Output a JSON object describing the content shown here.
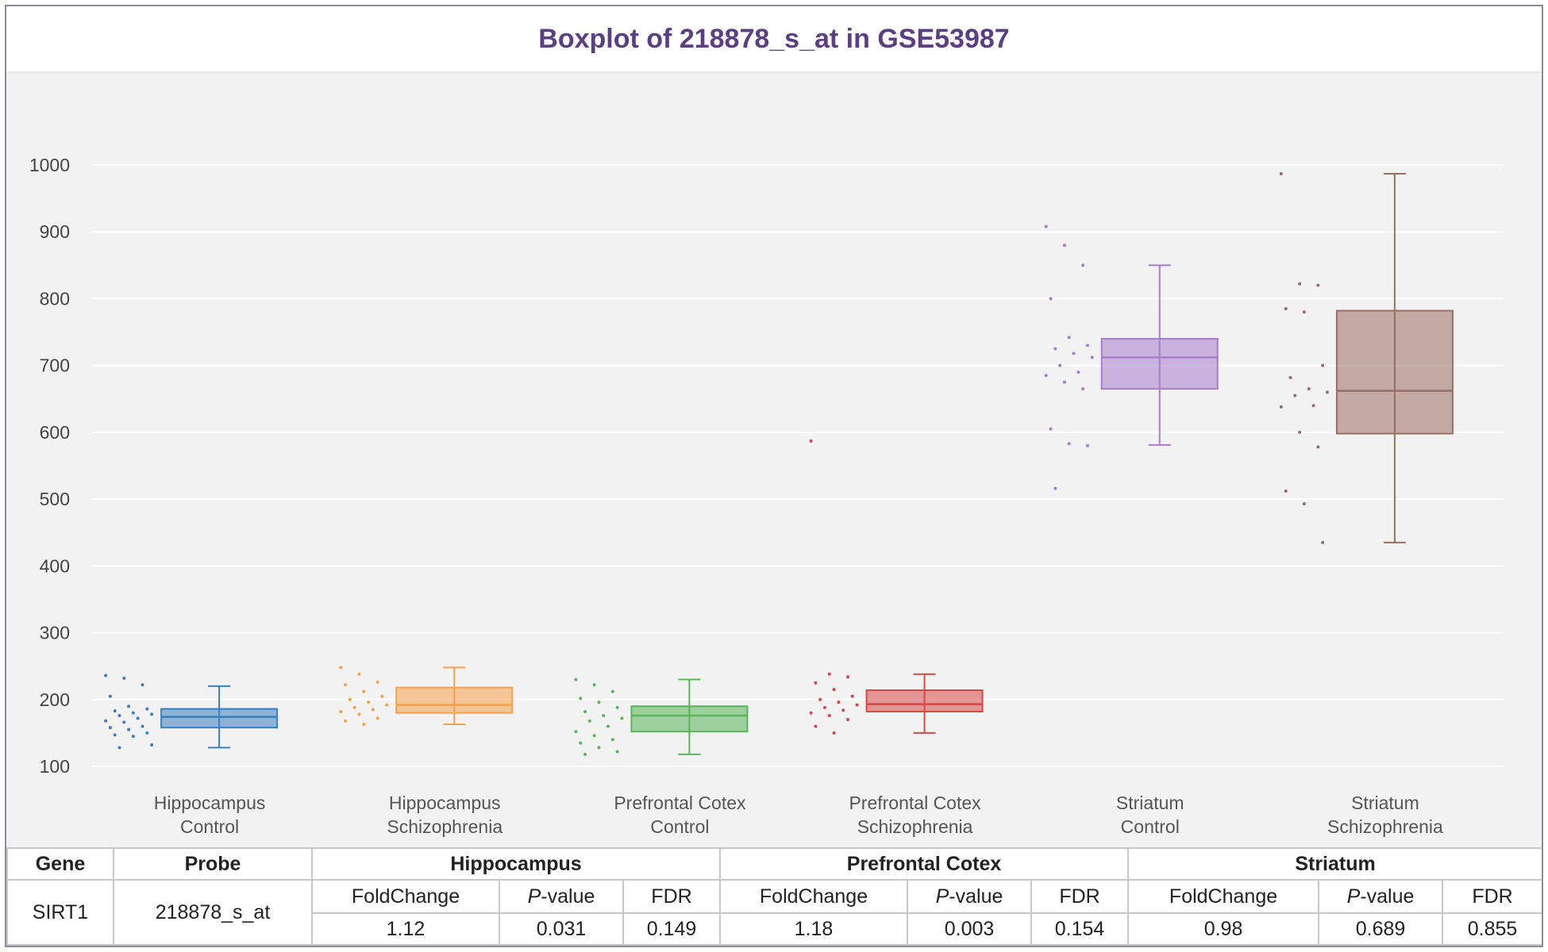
{
  "chart_data": {
    "type": "box",
    "title": "Boxplot of 218878_s_at in GSE53987",
    "xlabel": "",
    "ylabel": "",
    "ylim": [
      100,
      1000
    ],
    "yticks": [
      100,
      200,
      300,
      400,
      500,
      600,
      700,
      800,
      900,
      1000
    ],
    "grid": true,
    "groups": [
      {
        "label_line1": "Hippocampus",
        "label_line2": "Control",
        "color": "#3a7fc1",
        "min": 128,
        "q1": 158,
        "median": 174,
        "q3": 186,
        "max": 220,
        "points": [
          236,
          232,
          222,
          205,
          190,
          186,
          183,
          180,
          178,
          176,
          172,
          168,
          166,
          160,
          158,
          155,
          150,
          147,
          145,
          132,
          128
        ]
      },
      {
        "label_line1": "Hippocampus",
        "label_line2": "Schizophrenia",
        "color": "#f5a04a",
        "min": 163,
        "q1": 180,
        "median": 192,
        "q3": 218,
        "max": 248,
        "points": [
          248,
          238,
          226,
          222,
          212,
          205,
          200,
          196,
          192,
          188,
          185,
          182,
          178,
          172,
          168,
          163
        ]
      },
      {
        "label_line1": "Prefrontal Cotex",
        "label_line2": "Control",
        "color": "#5ab55a",
        "min": 118,
        "q1": 152,
        "median": 176,
        "q3": 190,
        "max": 230,
        "points": [
          230,
          222,
          212,
          202,
          196,
          188,
          182,
          176,
          172,
          168,
          160,
          152,
          146,
          140,
          135,
          128,
          122,
          118
        ]
      },
      {
        "label_line1": "Prefrontal Cotex",
        "label_line2": "Schizophrenia",
        "color": "#d64848",
        "min": 150,
        "q1": 182,
        "median": 193,
        "q3": 214,
        "max": 238,
        "points": [
          587,
          238,
          234,
          225,
          215,
          205,
          200,
          196,
          192,
          188,
          184,
          180,
          176,
          170,
          160,
          150
        ]
      },
      {
        "label_line1": "Striatum",
        "label_line2": "Control",
        "color": "#a77dcc",
        "min": 581,
        "q1": 665,
        "median": 712,
        "q3": 740,
        "max": 850,
        "points": [
          908,
          880,
          850,
          800,
          742,
          730,
          725,
          718,
          712,
          700,
          690,
          685,
          675,
          665,
          605,
          583,
          580,
          516
        ]
      },
      {
        "label_line1": "Striatum",
        "label_line2": "Schizophrenia",
        "color": "#9a6e65",
        "min": 435,
        "q1": 598,
        "median": 662,
        "q3": 782,
        "max": 987,
        "points": [
          987,
          822,
          820,
          785,
          780,
          700,
          682,
          665,
          660,
          655,
          640,
          638,
          600,
          578,
          512,
          493,
          435
        ]
      }
    ]
  },
  "table": {
    "headers": {
      "gene": "Gene",
      "probe": "Probe",
      "region1": "Hippocampus",
      "region2": "Prefrontal Cotex",
      "region3": "Striatum"
    },
    "sub": {
      "foldchange": "FoldChange",
      "p_italic": "P",
      "p_rest": "-value",
      "fdr": "FDR"
    },
    "row": {
      "gene": "SIRT1",
      "probe": "218878_s_at",
      "hip_fc": "1.12",
      "hip_p": "0.031",
      "hip_fdr": "0.149",
      "pfc_fc": "1.18",
      "pfc_p": "0.003",
      "pfc_fdr": "0.154",
      "str_fc": "0.98",
      "str_p": "0.689",
      "str_fdr": "0.855"
    }
  }
}
